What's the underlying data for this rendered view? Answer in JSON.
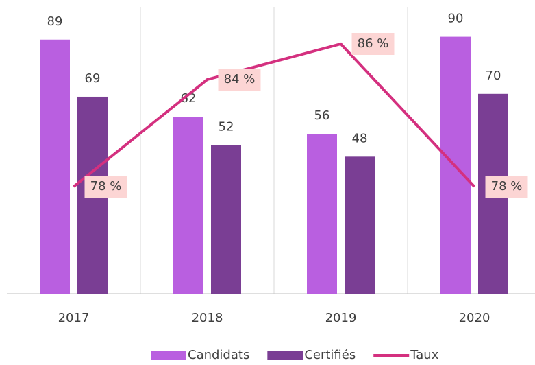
{
  "chart_data": {
    "type": "bar-line",
    "categories": [
      "2017",
      "2018",
      "2019",
      "2020"
    ],
    "series": [
      {
        "name": "Candidats",
        "type": "bar",
        "color": "#b95fe0",
        "values": [
          89,
          62,
          56,
          90
        ]
      },
      {
        "name": "Certifiés",
        "type": "bar",
        "color": "#7a3e94",
        "values": [
          69,
          52,
          48,
          70
        ]
      },
      {
        "name": "Taux",
        "type": "line",
        "axis": "y2",
        "color": "#d4307f",
        "values": [
          78,
          84,
          86,
          78
        ],
        "value_labels": [
          "78 %",
          "84 %",
          "86 %",
          "78 %"
        ]
      }
    ],
    "ylim": [
      0,
      100
    ],
    "y2lim": [
      72,
      88
    ],
    "grid": true,
    "legend": "bottom"
  }
}
